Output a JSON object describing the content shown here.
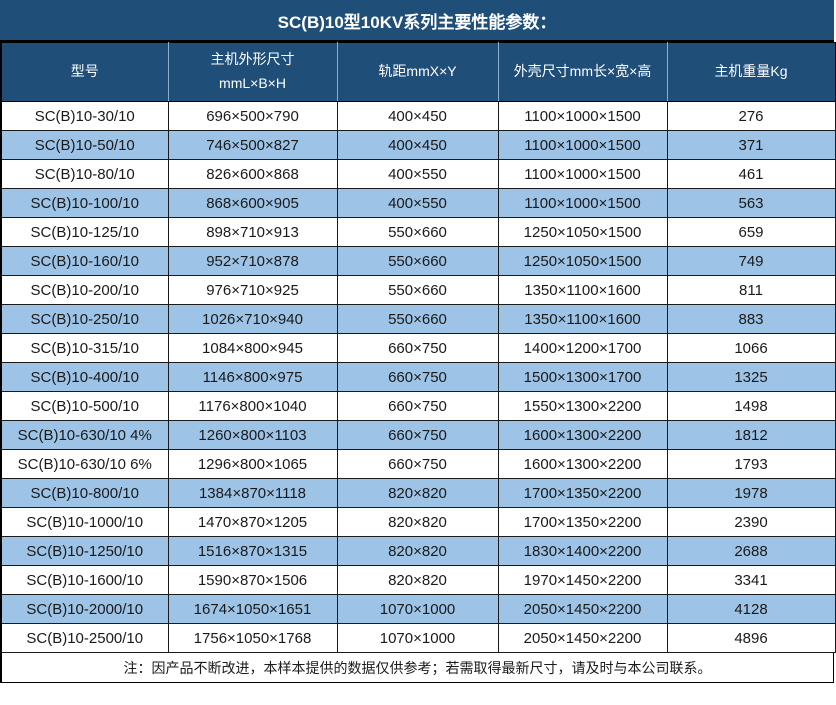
{
  "title": "SC(B)10型10KV系列主要性能参数：",
  "table": {
    "headers": [
      "型号",
      "主机外形尺寸\nmmL×B×H",
      "轨距mmX×Y",
      "外壳尺寸mm长×宽×高",
      "主机重量Kg"
    ],
    "rows": [
      [
        "SC(B)10-30/10",
        "696×500×790",
        "400×450",
        "1100×1000×1500",
        "276"
      ],
      [
        "SC(B)10-50/10",
        "746×500×827",
        "400×450",
        "1100×1000×1500",
        "371"
      ],
      [
        "SC(B)10-80/10",
        "826×600×868",
        "400×550",
        "1100×1000×1500",
        "461"
      ],
      [
        "SC(B)10-100/10",
        "868×600×905",
        "400×550",
        "1100×1000×1500",
        "563"
      ],
      [
        "SC(B)10-125/10",
        "898×710×913",
        "550×660",
        "1250×1050×1500",
        "659"
      ],
      [
        "SC(B)10-160/10",
        "952×710×878",
        "550×660",
        "1250×1050×1500",
        "749"
      ],
      [
        "SC(B)10-200/10",
        "976×710×925",
        "550×660",
        "1350×1100×1600",
        "811"
      ],
      [
        "SC(B)10-250/10",
        "1026×710×940",
        "550×660",
        "1350×1100×1600",
        "883"
      ],
      [
        "SC(B)10-315/10",
        "1084×800×945",
        "660×750",
        "1400×1200×1700",
        "1066"
      ],
      [
        "SC(B)10-400/10",
        "1146×800×975",
        "660×750",
        "1500×1300×1700",
        "1325"
      ],
      [
        "SC(B)10-500/10",
        "1176×800×1040",
        "660×750",
        "1550×1300×2200",
        "1498"
      ],
      [
        "SC(B)10-630/10 4%",
        "1260×800×1103",
        "660×750",
        "1600×1300×2200",
        "1812"
      ],
      [
        "SC(B)10-630/10 6%",
        "1296×800×1065",
        "660×750",
        "1600×1300×2200",
        "1793"
      ],
      [
        "SC(B)10-800/10",
        "1384×870×1118",
        "820×820",
        "1700×1350×2200",
        "1978"
      ],
      [
        "SC(B)10-1000/10",
        "1470×870×1205",
        "820×820",
        "1700×1350×2200",
        "2390"
      ],
      [
        "SC(B)10-1250/10",
        "1516×870×1315",
        "820×820",
        "1830×1400×2200",
        "2688"
      ],
      [
        "SC(B)10-1600/10",
        "1590×870×1506",
        "820×820",
        "1970×1450×2200",
        "3341"
      ],
      [
        "SC(B)10-2000/10",
        "1674×1050×1651",
        "1070×1000",
        "2050×1450×2200",
        "4128"
      ],
      [
        "SC(B)10-2500/10",
        "1756×1050×1768",
        "1070×1000",
        "2050×1450×2200",
        "4896"
      ]
    ],
    "note": "注：因产品不断改进，本样本提供的数据仅供参考；若需取得最新尺寸，请及时与本公司联系。"
  },
  "colors": {
    "header_bg": "#1f4e79",
    "row_alt_bg": "#9dc3e6",
    "border": "#1a1a1a",
    "text": "#1a1a1a",
    "header_text": "#ffffff",
    "page_bg": "#ffffff"
  }
}
